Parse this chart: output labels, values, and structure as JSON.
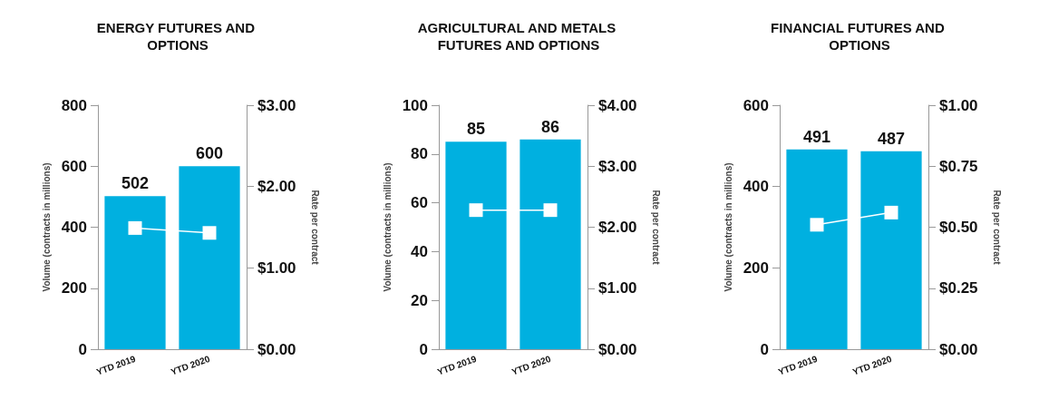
{
  "chart_data": [
    {
      "type": "bar",
      "title": "ENERGY FUTURES AND OPTIONS",
      "ylabel": "Volume (contracts in millions)",
      "y2label": "Rate per contract",
      "categories": [
        "YTD 2019",
        "YTD 2020"
      ],
      "series": [
        {
          "color": "#00b0e0",
          "values": [
            502,
            600
          ],
          "value_labels": [
            "502",
            "600"
          ]
        },
        {
          "type": "line",
          "axis": "y2",
          "color": "#ffffff",
          "marker": "square",
          "values": [
            1.49,
            1.43
          ]
        }
      ],
      "ylim": [
        0,
        800
      ],
      "yticks": [
        0,
        200,
        400,
        600,
        800
      ],
      "y2lim": [
        0,
        3
      ],
      "y2ticks": [
        {
          "value": 0,
          "label": "$0.00"
        },
        {
          "value": 1,
          "label": "$1.00"
        },
        {
          "value": 2,
          "label": "$2.00"
        },
        {
          "value": 3,
          "label": "$3.00"
        }
      ]
    },
    {
      "type": "bar",
      "title": "AGRICULTURAL AND METALS FUTURES AND OPTIONS",
      "ylabel": "Volume (contracts in millions)",
      "y2label": "Rate per contract",
      "categories": [
        "YTD 2019",
        "YTD 2020"
      ],
      "series": [
        {
          "color": "#00b0e0",
          "values": [
            85,
            86
          ],
          "value_labels": [
            "85",
            "86"
          ]
        },
        {
          "type": "line",
          "axis": "y2",
          "color": "#ffffff",
          "marker": "square",
          "values": [
            2.28,
            2.28
          ]
        }
      ],
      "ylim": [
        0,
        100
      ],
      "yticks": [
        0,
        20,
        40,
        60,
        80,
        100
      ],
      "y2lim": [
        0,
        4
      ],
      "y2ticks": [
        {
          "value": 0,
          "label": "$0.00"
        },
        {
          "value": 1,
          "label": "$1.00"
        },
        {
          "value": 2,
          "label": "$2.00"
        },
        {
          "value": 3,
          "label": "$3.00"
        },
        {
          "value": 4,
          "label": "$4.00"
        }
      ]
    },
    {
      "type": "bar",
      "title": "FINANCIAL FUTURES AND OPTIONS",
      "ylabel": "Volume (contracts in millions)",
      "y2label": "Rate per contract",
      "categories": [
        "YTD 2019",
        "YTD 2020"
      ],
      "series": [
        {
          "color": "#00b0e0",
          "values": [
            491,
            487
          ],
          "value_labels": [
            "491",
            "487"
          ]
        },
        {
          "type": "line",
          "axis": "y2",
          "color": "#ffffff",
          "marker": "square",
          "values": [
            0.51,
            0.56
          ]
        }
      ],
      "ylim": [
        0,
        600
      ],
      "yticks": [
        0,
        200,
        400,
        600
      ],
      "y2lim": [
        0,
        1
      ],
      "y2ticks": [
        {
          "value": 0,
          "label": "$0.00"
        },
        {
          "value": 0.25,
          "label": "$0.25"
        },
        {
          "value": 0.5,
          "label": "$0.50"
        },
        {
          "value": 0.75,
          "label": "$0.75"
        },
        {
          "value": 1,
          "label": "$1.00"
        }
      ]
    }
  ]
}
